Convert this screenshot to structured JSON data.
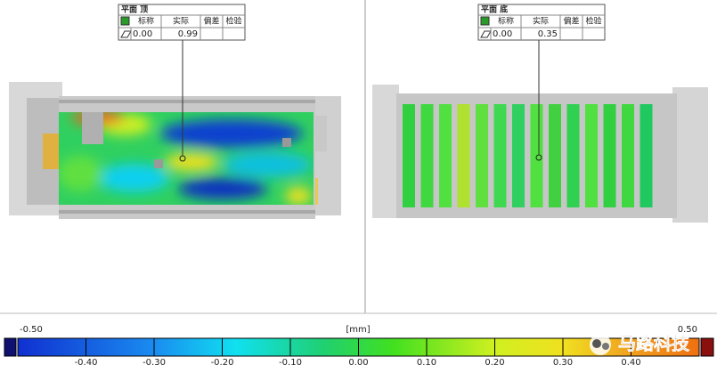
{
  "panels": [
    {
      "title": "平面 顶",
      "headers": [
        "标称",
        "实际",
        "偏差",
        "检验"
      ],
      "nominal": "0.00",
      "actual": "0.99"
    },
    {
      "title": "平面 底",
      "headers": [
        "标称",
        "实际",
        "偏差",
        "检验"
      ],
      "nominal": "0.00",
      "actual": "0.35"
    }
  ],
  "colorbar": {
    "min_label": "-0.50",
    "unit": "[mm]",
    "max_label": "0.50",
    "ticks": [
      "-0.40",
      "-0.30",
      "-0.20",
      "-0.10",
      "0.00",
      "0.10",
      "0.20",
      "0.30",
      "0.40"
    ]
  },
  "watermark": "马路科技"
}
